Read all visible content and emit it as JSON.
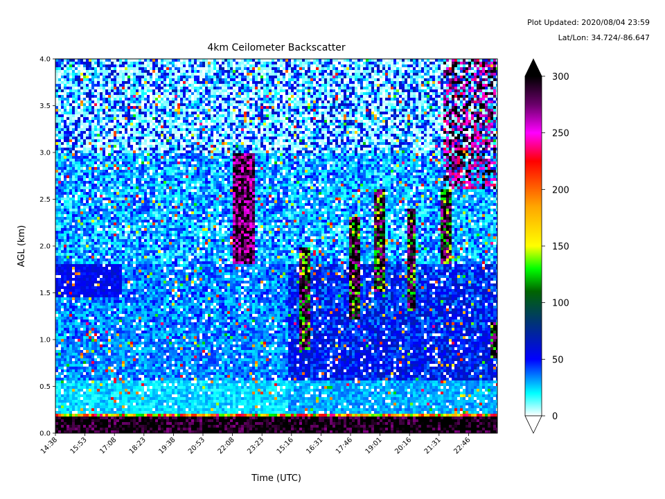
{
  "plot_updated": "Plot Updated: 2020/08/04 23:59",
  "latlon": "Lat/Lon: 34.724/-86.647",
  "chart_data": {
    "type": "heatmap",
    "title": "4km Ceilometer Backscatter",
    "xlabel": "Time (UTC)",
    "ylabel": "AGL (km)",
    "x_ticks": [
      "14:38",
      "15:53",
      "17:08",
      "18:23",
      "19:38",
      "20:53",
      "22:08",
      "23:23",
      "15:16",
      "16:31",
      "17:46",
      "19:01",
      "20:16",
      "21:31",
      "22:46"
    ],
    "y_ticks": [
      "0.0",
      "0.5",
      "1.0",
      "1.5",
      "2.0",
      "2.5",
      "3.0",
      "3.5",
      "4.0"
    ],
    "ylim": [
      0.0,
      4.0
    ],
    "colorbar": {
      "ticks": [
        0,
        50,
        100,
        150,
        200,
        250,
        300
      ],
      "range": [
        0,
        300
      ],
      "extend": "both",
      "colors": [
        {
          "value": 0,
          "color": "#ffffff"
        },
        {
          "value": 20,
          "color": "#00ffff"
        },
        {
          "value": 50,
          "color": "#0000ff"
        },
        {
          "value": 80,
          "color": "#003080"
        },
        {
          "value": 110,
          "color": "#006400"
        },
        {
          "value": 130,
          "color": "#00ff00"
        },
        {
          "value": 150,
          "color": "#ffff00"
        },
        {
          "value": 185,
          "color": "#ffa500"
        },
        {
          "value": 225,
          "color": "#ff0000"
        },
        {
          "value": 250,
          "color": "#ff00ff"
        },
        {
          "value": 275,
          "color": "#6a006a"
        },
        {
          "value": 300,
          "color": "#000000"
        }
      ]
    },
    "features": [
      {
        "name": "surface aerosol layer",
        "altitude_km": [
          0.0,
          0.2
        ],
        "backscatter": 300
      },
      {
        "name": "low haze layer, day 1",
        "altitude_km": [
          0.2,
          0.6
        ],
        "backscatter": 25
      },
      {
        "name": "blue elevated layer, day 1",
        "altitude_km": [
          1.5,
          1.8
        ],
        "backscatter": 55
      },
      {
        "name": "cloud near 22:08",
        "time": "22:08",
        "altitude_km": [
          1.8,
          3.0
        ],
        "backscatter": 300
      },
      {
        "name": "daytime boundary layer, day 2",
        "altitude_km": [
          0.5,
          1.2
        ],
        "backscatter": 50
      },
      {
        "name": "cumulus columns, day 2",
        "altitude_km": [
          0.8,
          2.5
        ],
        "backscatter": 300
      },
      {
        "name": "deep cloud after 21:31",
        "altitude_km": [
          1.8,
          4.0
        ],
        "backscatter": 300
      }
    ]
  }
}
